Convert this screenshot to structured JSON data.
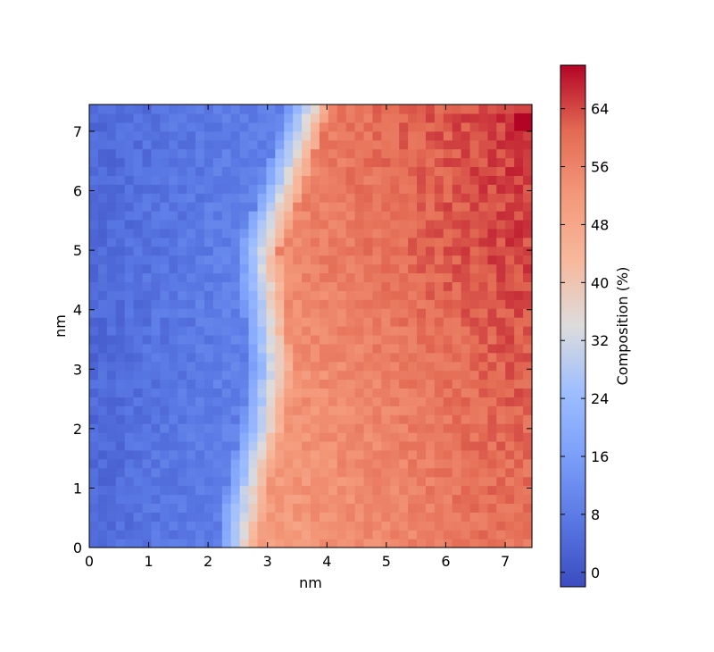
{
  "chart_data": {
    "type": "heatmap",
    "title": "",
    "xlabel": "nm",
    "ylabel": "nm",
    "xlim": [
      0,
      7.45
    ],
    "ylim": [
      0,
      7.45
    ],
    "x_ticks": [
      "0",
      "1",
      "2",
      "3",
      "4",
      "5",
      "6",
      "7"
    ],
    "y_ticks": [
      "0",
      "1",
      "2",
      "3",
      "4",
      "5",
      "6",
      "7"
    ],
    "colormap": "coolwarm",
    "colorbar": {
      "label": "Composition (%)",
      "range": [
        -2,
        70
      ],
      "ticks": [
        "0",
        "8",
        "16",
        "24",
        "32",
        "40",
        "48",
        "56",
        "64"
      ]
    },
    "boundary_rows": [
      {
        "y": 0.0,
        "x": 2.5
      },
      {
        "y": 1.0,
        "x": 2.65
      },
      {
        "y": 2.0,
        "x": 2.9
      },
      {
        "y": 3.0,
        "x": 3.05
      },
      {
        "y": 4.0,
        "x": 2.95
      },
      {
        "y": 5.0,
        "x": 2.85
      },
      {
        "y": 6.0,
        "x": 3.2
      },
      {
        "y": 7.45,
        "x": 3.7
      }
    ],
    "regions": [
      {
        "name": "left",
        "composition_approx": [
          3,
          8
        ]
      },
      {
        "name": "right",
        "composition_approx": [
          48,
          66
        ]
      }
    ]
  }
}
